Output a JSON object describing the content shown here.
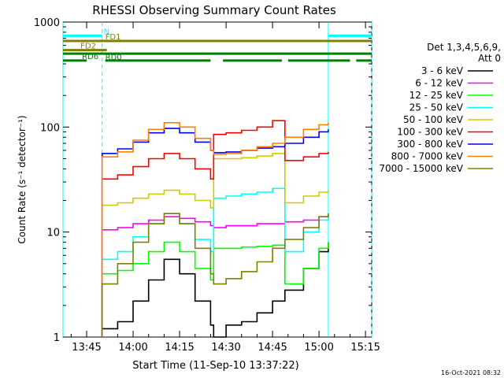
{
  "chart_data": {
    "type": "line",
    "title": "RHESSI Observing Summary Count Rates",
    "xlabel": "Start Time (11-Sep-10 13:37:22)",
    "ylabel": "Count Rate (s⁻¹ detector⁻¹)",
    "y_scale": "log",
    "ylim": [
      1,
      1000
    ],
    "xlim": [
      "13:37:22",
      "15:17:00"
    ],
    "x_ticks": [
      "13:45",
      "14:00",
      "14:15",
      "14:30",
      "14:45",
      "15:00",
      "15:15"
    ],
    "y_ticks": [
      "1",
      "10",
      "100",
      "1000"
    ],
    "legend_title": [
      "Det 1,3,4,5,6,9,",
      "Att 0"
    ],
    "legend_position": "right",
    "timestamp": "16-Oct-2021 08:32",
    "gaps": [
      [
        "13:37:22",
        "13:50:00"
      ],
      [
        "15:03:00",
        "15:17:00"
      ]
    ],
    "data_breaks": [
      "14:26",
      "14:49"
    ],
    "series": [
      {
        "name": "3 - 6 keV",
        "color": "#000000",
        "points": [
          [
            "13:50",
            1.2
          ],
          [
            "13:55",
            1.4
          ],
          [
            "14:00",
            2.2
          ],
          [
            "14:05",
            3.5
          ],
          [
            "14:10",
            5.5
          ],
          [
            "14:15",
            4.0
          ],
          [
            "14:20",
            2.2
          ],
          [
            "14:25",
            1.3
          ],
          [
            "14:26",
            1.0
          ],
          [
            "14:30",
            1.3
          ],
          [
            "14:35",
            1.4
          ],
          [
            "14:40",
            1.7
          ],
          [
            "14:45",
            2.2
          ],
          [
            "14:49",
            2.8
          ],
          [
            "14:55",
            4.5
          ],
          [
            "15:00",
            6.5
          ],
          [
            "15:03",
            8.0
          ]
        ]
      },
      {
        "name": "6 - 12 keV",
        "color": "#ff00ff",
        "points": [
          [
            "13:50",
            10.5
          ],
          [
            "13:55",
            11
          ],
          [
            "14:00",
            12
          ],
          [
            "14:05",
            13
          ],
          [
            "14:10",
            14
          ],
          [
            "14:15",
            13.5
          ],
          [
            "14:20",
            12.5
          ],
          [
            "14:25",
            11.5
          ],
          [
            "14:26",
            11
          ],
          [
            "14:30",
            11.5
          ],
          [
            "14:35",
            11.5
          ],
          [
            "14:40",
            12
          ],
          [
            "14:45",
            12
          ],
          [
            "14:49",
            12.5
          ],
          [
            "14:55",
            13
          ],
          [
            "15:00",
            14
          ],
          [
            "15:03",
            15
          ]
        ]
      },
      {
        "name": "12 - 25 keV",
        "color": "#00ff00",
        "points": [
          [
            "13:50",
            4.0
          ],
          [
            "13:55",
            4.3
          ],
          [
            "14:00",
            5.0
          ],
          [
            "14:05",
            6.5
          ],
          [
            "14:10",
            8.0
          ],
          [
            "14:15",
            6.5
          ],
          [
            "14:20",
            4.5
          ],
          [
            "14:25",
            3.5
          ],
          [
            "14:26",
            7.0
          ],
          [
            "14:30",
            7.0
          ],
          [
            "14:35",
            7.2
          ],
          [
            "14:40",
            7.3
          ],
          [
            "14:45",
            7.5
          ],
          [
            "14:49",
            3.2
          ],
          [
            "14:55",
            4.5
          ],
          [
            "15:00",
            7.0
          ],
          [
            "15:03",
            8.0
          ]
        ]
      },
      {
        "name": "25 - 50 keV",
        "color": "#00ffff",
        "points": [
          [
            "13:50",
            5.5
          ],
          [
            "13:55",
            6.5
          ],
          [
            "14:00",
            9.0
          ],
          [
            "14:05",
            12
          ],
          [
            "14:10",
            15
          ],
          [
            "14:15",
            12
          ],
          [
            "14:20",
            8.5
          ],
          [
            "14:25",
            6.5
          ],
          [
            "14:26",
            21
          ],
          [
            "14:30",
            22
          ],
          [
            "14:35",
            23
          ],
          [
            "14:40",
            24
          ],
          [
            "14:45",
            26
          ],
          [
            "14:49",
            6.5
          ],
          [
            "14:55",
            10
          ],
          [
            "15:00",
            13
          ],
          [
            "15:03",
            15
          ]
        ]
      },
      {
        "name": "50 - 100 keV",
        "color": "#cccc00",
        "points": [
          [
            "13:50",
            18
          ],
          [
            "13:55",
            19
          ],
          [
            "14:00",
            21
          ],
          [
            "14:05",
            23
          ],
          [
            "14:10",
            25
          ],
          [
            "14:15",
            23
          ],
          [
            "14:20",
            20
          ],
          [
            "14:25",
            17
          ],
          [
            "14:26",
            50
          ],
          [
            "14:30",
            50
          ],
          [
            "14:35",
            51
          ],
          [
            "14:40",
            53
          ],
          [
            "14:45",
            56
          ],
          [
            "14:49",
            19
          ],
          [
            "14:55",
            22
          ],
          [
            "15:00",
            24
          ],
          [
            "15:03",
            25
          ]
        ]
      },
      {
        "name": "100 - 300 keV",
        "color": "#ff0000",
        "points": [
          [
            "13:50",
            32
          ],
          [
            "13:55",
            35
          ],
          [
            "14:00",
            42
          ],
          [
            "14:05",
            50
          ],
          [
            "14:10",
            56
          ],
          [
            "14:15",
            50
          ],
          [
            "14:20",
            40
          ],
          [
            "14:25",
            32
          ],
          [
            "14:26",
            85
          ],
          [
            "14:30",
            88
          ],
          [
            "14:35",
            93
          ],
          [
            "14:40",
            100
          ],
          [
            "14:45",
            115
          ],
          [
            "14:49",
            48
          ],
          [
            "14:55",
            52
          ],
          [
            "15:00",
            56
          ],
          [
            "15:03",
            58
          ]
        ]
      },
      {
        "name": "300 - 800 keV",
        "color": "#0000ff",
        "points": [
          [
            "13:50",
            56
          ],
          [
            "13:55",
            62
          ],
          [
            "14:00",
            72
          ],
          [
            "14:05",
            88
          ],
          [
            "14:10",
            97
          ],
          [
            "14:15",
            88
          ],
          [
            "14:20",
            72
          ],
          [
            "14:25",
            60
          ],
          [
            "14:26",
            57
          ],
          [
            "14:30",
            58
          ],
          [
            "14:35",
            60
          ],
          [
            "14:40",
            63
          ],
          [
            "14:45",
            65
          ],
          [
            "14:49",
            70
          ],
          [
            "14:55",
            80
          ],
          [
            "15:00",
            90
          ],
          [
            "15:03",
            95
          ]
        ]
      },
      {
        "name": "800 - 7000 keV",
        "color": "#ff8000",
        "points": [
          [
            "13:50",
            52
          ],
          [
            "13:55",
            58
          ],
          [
            "14:00",
            75
          ],
          [
            "14:05",
            95
          ],
          [
            "14:10",
            110
          ],
          [
            "14:15",
            100
          ],
          [
            "14:20",
            78
          ],
          [
            "14:25",
            60
          ],
          [
            "14:26",
            55
          ],
          [
            "14:30",
            56
          ],
          [
            "14:35",
            60
          ],
          [
            "14:40",
            65
          ],
          [
            "14:45",
            70
          ],
          [
            "14:49",
            80
          ],
          [
            "14:55",
            95
          ],
          [
            "15:00",
            105
          ],
          [
            "15:03",
            110
          ]
        ]
      },
      {
        "name": "7000 - 15000 keV",
        "color": "#808000",
        "points": [
          [
            "13:50",
            3.2
          ],
          [
            "13:55",
            5.0
          ],
          [
            "14:00",
            8.0
          ],
          [
            "14:05",
            12
          ],
          [
            "14:10",
            15
          ],
          [
            "14:15",
            12
          ],
          [
            "14:20",
            7.0
          ],
          [
            "14:25",
            4.0
          ],
          [
            "14:26",
            3.2
          ],
          [
            "14:30",
            3.6
          ],
          [
            "14:35",
            4.2
          ],
          [
            "14:40",
            5.2
          ],
          [
            "14:45",
            7.0
          ],
          [
            "14:49",
            8.5
          ],
          [
            "14:55",
            11
          ],
          [
            "15:00",
            14
          ],
          [
            "15:03",
            15
          ]
        ]
      }
    ],
    "flags": [
      {
        "label": "N",
        "color": "#00ffff",
        "y": 740,
        "segments": [
          [
            "13:37:22",
            "13:50:00"
          ],
          [
            "15:03:00",
            "15:17:00"
          ]
        ],
        "label_at": "13:50:30"
      },
      {
        "label": "FD1",
        "color": "#808000",
        "y": 660,
        "segments": [
          [
            "13:37:22",
            "15:17:00"
          ]
        ],
        "label_at": "13:51:00"
      },
      {
        "label": "FD2",
        "color": "#808000",
        "y": 540,
        "segments": [
          [
            "13:37:22",
            "13:51:30"
          ]
        ],
        "label_at": "13:43:00"
      },
      {
        "label": "RD0",
        "color": "#008000",
        "y": 500,
        "segments": [
          [
            "13:37:22",
            "15:17:00"
          ]
        ],
        "label_at": "13:51:00"
      },
      {
        "label": "RD6",
        "color": "#008000",
        "y": 430,
        "segments": [
          [
            "13:37:22",
            "13:45:00"
          ],
          [
            "13:51:00",
            "14:25:00"
          ],
          [
            "14:29:00",
            "14:48:00"
          ],
          [
            "14:50:00",
            "15:10:00"
          ],
          [
            "15:12:00",
            "15:17:00"
          ]
        ],
        "label_at": "13:43:30"
      }
    ]
  }
}
